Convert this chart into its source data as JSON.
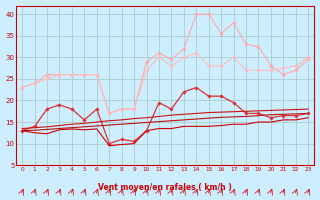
{
  "xlabel": "Vent moyen/en rafales ( km/h )",
  "background_color": "#cceeff",
  "grid_color": "#aacccc",
  "x": [
    0,
    1,
    2,
    3,
    4,
    5,
    6,
    7,
    8,
    9,
    10,
    11,
    12,
    13,
    14,
    15,
    16,
    17,
    18,
    19,
    20,
    21,
    22,
    23
  ],
  "series": [
    {
      "color": "#ffaaaa",
      "linewidth": 0.8,
      "marker": "D",
      "markersize": 1.8,
      "values": [
        23,
        24,
        26,
        26,
        26,
        26,
        26,
        17,
        18,
        18,
        29,
        31,
        29.5,
        32,
        40,
        40,
        35.5,
        38,
        33,
        32.5,
        28,
        26,
        27,
        29.5
      ]
    },
    {
      "color": "#ffbbbb",
      "linewidth": 0.8,
      "marker": "D",
      "markersize": 1.8,
      "values": [
        23,
        24,
        25,
        26,
        26,
        26,
        26,
        17,
        18,
        18,
        27,
        30,
        28,
        30,
        31,
        28,
        28,
        30,
        27,
        27,
        27,
        27.5,
        28,
        30
      ]
    },
    {
      "color": "#dd3333",
      "linewidth": 0.9,
      "marker": "D",
      "markersize": 1.8,
      "values": [
        13,
        14,
        18,
        19,
        18,
        15.5,
        18,
        10,
        11,
        10.5,
        13,
        19.5,
        18,
        22,
        23,
        21,
        21,
        19.5,
        17,
        17,
        16,
        16.5,
        16.5,
        17
      ]
    },
    {
      "color": "#cc1111",
      "linewidth": 0.8,
      "marker": null,
      "markersize": 0,
      "values": [
        13.5,
        13.7,
        13.9,
        14.2,
        14.5,
        14.7,
        15.0,
        15.3,
        15.5,
        15.8,
        16.0,
        16.3,
        16.6,
        16.8,
        17.0,
        17.2,
        17.3,
        17.4,
        17.5,
        17.6,
        17.7,
        17.8,
        17.9,
        18.0
      ]
    },
    {
      "color": "#bb1111",
      "linewidth": 0.8,
      "marker": null,
      "markersize": 0,
      "values": [
        13.0,
        13.1,
        13.3,
        13.5,
        13.7,
        13.9,
        14.1,
        14.3,
        14.5,
        14.7,
        14.9,
        15.1,
        15.3,
        15.5,
        15.7,
        15.9,
        16.1,
        16.2,
        16.3,
        16.5,
        16.7,
        16.8,
        16.9,
        17.0
      ]
    },
    {
      "color": "#cc0000",
      "linewidth": 0.8,
      "marker": null,
      "markersize": 0,
      "values": [
        13.0,
        12.5,
        12.3,
        13.2,
        13.4,
        13.2,
        13.4,
        9.5,
        9.8,
        10.0,
        13.0,
        13.5,
        13.5,
        14.0,
        14.0,
        14.0,
        14.2,
        14.5,
        14.5,
        15.0,
        15.0,
        15.5,
        15.5,
        16.0
      ]
    }
  ],
  "ylim": [
    5,
    42
  ],
  "yticks": [
    5,
    10,
    15,
    20,
    25,
    30,
    35,
    40
  ],
  "xlim": [
    -0.5,
    23.5
  ],
  "xticks": [
    0,
    1,
    2,
    3,
    4,
    5,
    6,
    7,
    8,
    9,
    10,
    11,
    12,
    13,
    14,
    15,
    16,
    17,
    18,
    19,
    20,
    21,
    22,
    23
  ],
  "tick_color": "#cc0000",
  "label_color": "#cc0000",
  "spine_color": "#cc0000"
}
